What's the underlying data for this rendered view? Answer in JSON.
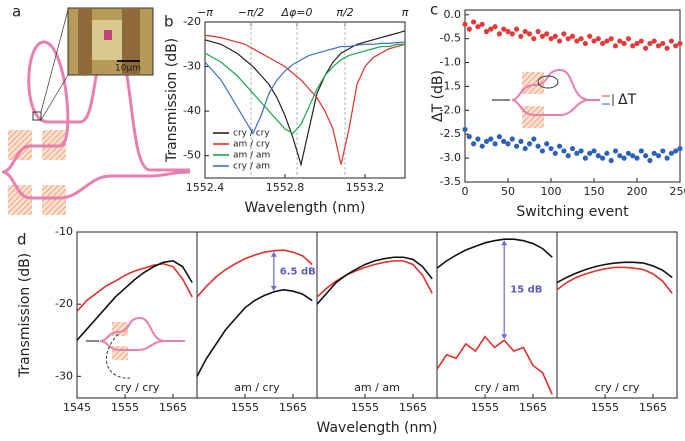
{
  "panel_a": {
    "label": "a",
    "scale_bar": "10μm"
  },
  "chart_data": [
    {
      "type": "line",
      "label": "b",
      "xlabel": "Wavelength (nm)",
      "ylabel": "Transmission (dB)",
      "x": [
        1552.4,
        1552.44,
        1552.48,
        1552.52,
        1552.56,
        1552.6,
        1552.64,
        1552.68,
        1552.72,
        1552.76,
        1552.8,
        1552.84,
        1552.88,
        1552.92,
        1552.96,
        1553.0,
        1553.04,
        1553.08,
        1553.12,
        1553.16,
        1553.2,
        1553.24,
        1553.28,
        1553.32,
        1553.36,
        1553.4
      ],
      "series": [
        {
          "name": "cry / cry",
          "color": "#222222",
          "values": [
            -24,
            -24.5,
            -25,
            -26,
            -27,
            -28.5,
            -30,
            -32,
            -34,
            -37,
            -41,
            -46,
            -52,
            -44,
            -36,
            -32,
            -29,
            -27,
            -26,
            -25,
            -24.5,
            -24,
            -23.5,
            -23,
            -22.5,
            -22
          ]
        },
        {
          "name": "am / cry",
          "color": "#e0302a",
          "values": [
            -23,
            -23.2,
            -23.5,
            -24,
            -24.5,
            -25,
            -26,
            -27,
            -28,
            -29,
            -30,
            -31.5,
            -33,
            -35,
            -37,
            -40,
            -44,
            -52,
            -44,
            -34,
            -30,
            -28,
            -27,
            -26,
            -25.5,
            -25
          ]
        },
        {
          "name": "am / am",
          "color": "#1aa64a",
          "values": [
            -27,
            -28,
            -29,
            -30.5,
            -32,
            -34,
            -36,
            -38,
            -40,
            -42,
            -44,
            -45,
            -43,
            -39,
            -35,
            -32,
            -30,
            -28.5,
            -27.5,
            -27,
            -26.5,
            -26,
            -25.5,
            -25.5,
            -25,
            -25
          ]
        },
        {
          "name": "cry / am",
          "color": "#3d6fc4",
          "values": [
            -29,
            -31,
            -33,
            -36,
            -39,
            -42,
            -45,
            -41,
            -36,
            -33,
            -31,
            -29.5,
            -28.5,
            -27.5,
            -27,
            -26.5,
            -26,
            -25.5,
            -25.5,
            -25.2,
            -25,
            -25,
            -24.8,
            -24.8,
            -24.6,
            -24.5
          ]
        }
      ],
      "xlim": [
        1552.4,
        1553.4
      ],
      "xticks": [
        1552.4,
        1552.8,
        1553.2
      ],
      "ylim": [
        -55,
        -20
      ],
      "yticks": [
        -20,
        -30,
        -40,
        -50
      ],
      "x2ticks": [
        {
          "value": 1552.4,
          "label": "−π"
        },
        {
          "value": 1552.63,
          "label": "−π/2"
        },
        {
          "value": 1552.86,
          "label": "Δφ=0"
        },
        {
          "value": 1553.1,
          "label": "π/2"
        },
        {
          "value": 1553.4,
          "label": "π"
        }
      ],
      "legend": "lower left"
    },
    {
      "type": "scatter",
      "label": "c",
      "xlabel": "Switching event",
      "ylabel": "ΔT (dB)",
      "annotation": "ΔT",
      "x": [
        0,
        5,
        10,
        15,
        20,
        25,
        30,
        35,
        40,
        45,
        50,
        55,
        60,
        65,
        70,
        75,
        80,
        85,
        90,
        95,
        100,
        105,
        110,
        115,
        120,
        125,
        130,
        135,
        140,
        145,
        150,
        155,
        160,
        165,
        170,
        175,
        180,
        185,
        190,
        195,
        200,
        205,
        210,
        215,
        220,
        225,
        230,
        235,
        240,
        245,
        250
      ],
      "series": [
        {
          "color": "#e23b3b",
          "values": [
            -0.2,
            -0.3,
            -0.15,
            -0.25,
            -0.2,
            -0.35,
            -0.3,
            -0.25,
            -0.4,
            -0.3,
            -0.35,
            -0.4,
            -0.3,
            -0.45,
            -0.35,
            -0.4,
            -0.5,
            -0.35,
            -0.45,
            -0.4,
            -0.5,
            -0.45,
            -0.55,
            -0.4,
            -0.5,
            -0.45,
            -0.55,
            -0.5,
            -0.6,
            -0.45,
            -0.55,
            -0.5,
            -0.6,
            -0.55,
            -0.5,
            -0.65,
            -0.55,
            -0.6,
            -0.5,
            -0.65,
            -0.6,
            -0.55,
            -0.7,
            -0.6,
            -0.55,
            -0.65,
            -0.6,
            -0.7,
            -0.55,
            -0.65,
            -0.6
          ]
        },
        {
          "color": "#2e62b8",
          "values": [
            -2.4,
            -2.55,
            -2.7,
            -2.6,
            -2.75,
            -2.65,
            -2.6,
            -2.7,
            -2.55,
            -2.65,
            -2.7,
            -2.6,
            -2.75,
            -2.65,
            -2.8,
            -2.7,
            -2.6,
            -2.75,
            -2.85,
            -2.7,
            -2.8,
            -2.9,
            -2.75,
            -2.85,
            -2.95,
            -2.8,
            -2.9,
            -2.85,
            -3.0,
            -2.9,
            -2.85,
            -2.95,
            -3.0,
            -2.9,
            -3.05,
            -2.85,
            -2.95,
            -3.0,
            -2.9,
            -2.95,
            -3.0,
            -2.85,
            -2.95,
            -3.05,
            -2.9,
            -2.95,
            -2.85,
            -3.0,
            -2.9,
            -2.85,
            -2.8
          ]
        }
      ],
      "xlim": [
        0,
        250
      ],
      "xticks": [
        0,
        50,
        100,
        150,
        200,
        250
      ],
      "ylim": [
        -3.5,
        0.1
      ],
      "yticks": [
        {
          "value": 0,
          "label": "0.0"
        },
        -0.5,
        {
          "value": -1,
          "label": "-1.0"
        },
        -1.5,
        {
          "value": -2,
          "label": "-2.0"
        },
        -2.5,
        {
          "value": -3,
          "label": "-3.0"
        },
        -3.5
      ]
    },
    {
      "type": "line",
      "label": "d",
      "xlabel": "Wavelength (nm)",
      "ylabel": "Transmission (dB)",
      "x": [
        1545,
        1547,
        1549,
        1551,
        1553,
        1555,
        1557,
        1559,
        1561,
        1563,
        1565,
        1567,
        1569
      ],
      "xlim": [
        1545,
        1570
      ],
      "xticks": [
        1545,
        1555,
        1565
      ],
      "ylim": [
        -33,
        -10
      ],
      "yticks": [
        -10,
        -20,
        -30
      ],
      "panels": [
        {
          "label": "cry / cry",
          "series": [
            {
              "color": "#e0302a",
              "values": [
                -21,
                -19.5,
                -18.5,
                -17.5,
                -16.8,
                -16,
                -15.4,
                -15,
                -14.6,
                -14.4,
                -14.8,
                -16.5,
                -19
              ]
            },
            {
              "color": "#111111",
              "values": [
                -25,
                -23.5,
                -22,
                -20.5,
                -19,
                -17.8,
                -16.6,
                -15.6,
                -14.8,
                -14.2,
                -14,
                -14.8,
                -17
              ]
            }
          ]
        },
        {
          "label": "am / cry",
          "annotation": "6.5 dB",
          "series": [
            {
              "color": "#e0302a",
              "values": [
                -19,
                -17.5,
                -16.2,
                -15.2,
                -14.4,
                -13.7,
                -13.2,
                -12.8,
                -12.6,
                -12.5,
                -12.8,
                -13.3,
                -14.5
              ]
            },
            {
              "color": "#111111",
              "values": [
                -30,
                -27.5,
                -25.5,
                -23.5,
                -22,
                -20.5,
                -19.5,
                -18.8,
                -18.3,
                -18,
                -18.2,
                -18.6,
                -19.5
              ]
            }
          ]
        },
        {
          "label": "am / am",
          "series": [
            {
              "color": "#e0302a",
              "values": [
                -19,
                -17.8,
                -16.8,
                -16,
                -15.4,
                -14.9,
                -14.5,
                -14.2,
                -14,
                -14,
                -14.5,
                -16,
                -18.5
              ]
            },
            {
              "color": "#111111",
              "values": [
                -20,
                -18.5,
                -17,
                -16,
                -15.2,
                -14.5,
                -14,
                -13.7,
                -13.5,
                -13.5,
                -13.8,
                -14.8,
                -16.5
              ]
            }
          ]
        },
        {
          "label": "cry / am",
          "annotation": "15 dB",
          "series": [
            {
              "color": "#e0302a",
              "values": [
                -29,
                -27,
                -27.5,
                -25.5,
                -26.5,
                -24.5,
                -26,
                -25,
                -26.5,
                -26,
                -28.5,
                -29.5,
                -32.5
              ]
            },
            {
              "color": "#111111",
              "values": [
                -15,
                -14,
                -13.2,
                -12.5,
                -12,
                -11.5,
                -11.2,
                -11,
                -11,
                -11.2,
                -11.6,
                -12.3,
                -13.5
              ]
            }
          ]
        },
        {
          "label": "cry / cry",
          "series": [
            {
              "color": "#e0302a",
              "values": [
                -18,
                -17,
                -16.3,
                -15.8,
                -15.4,
                -15.1,
                -14.9,
                -14.9,
                -15,
                -15.2,
                -15.8,
                -16.8,
                -18.5
              ]
            },
            {
              "color": "#111111",
              "values": [
                -17,
                -16.3,
                -15.7,
                -15.2,
                -14.8,
                -14.5,
                -14.3,
                -14.2,
                -14.2,
                -14.3,
                -14.7,
                -15.3,
                -16.3
              ]
            }
          ]
        }
      ]
    }
  ]
}
